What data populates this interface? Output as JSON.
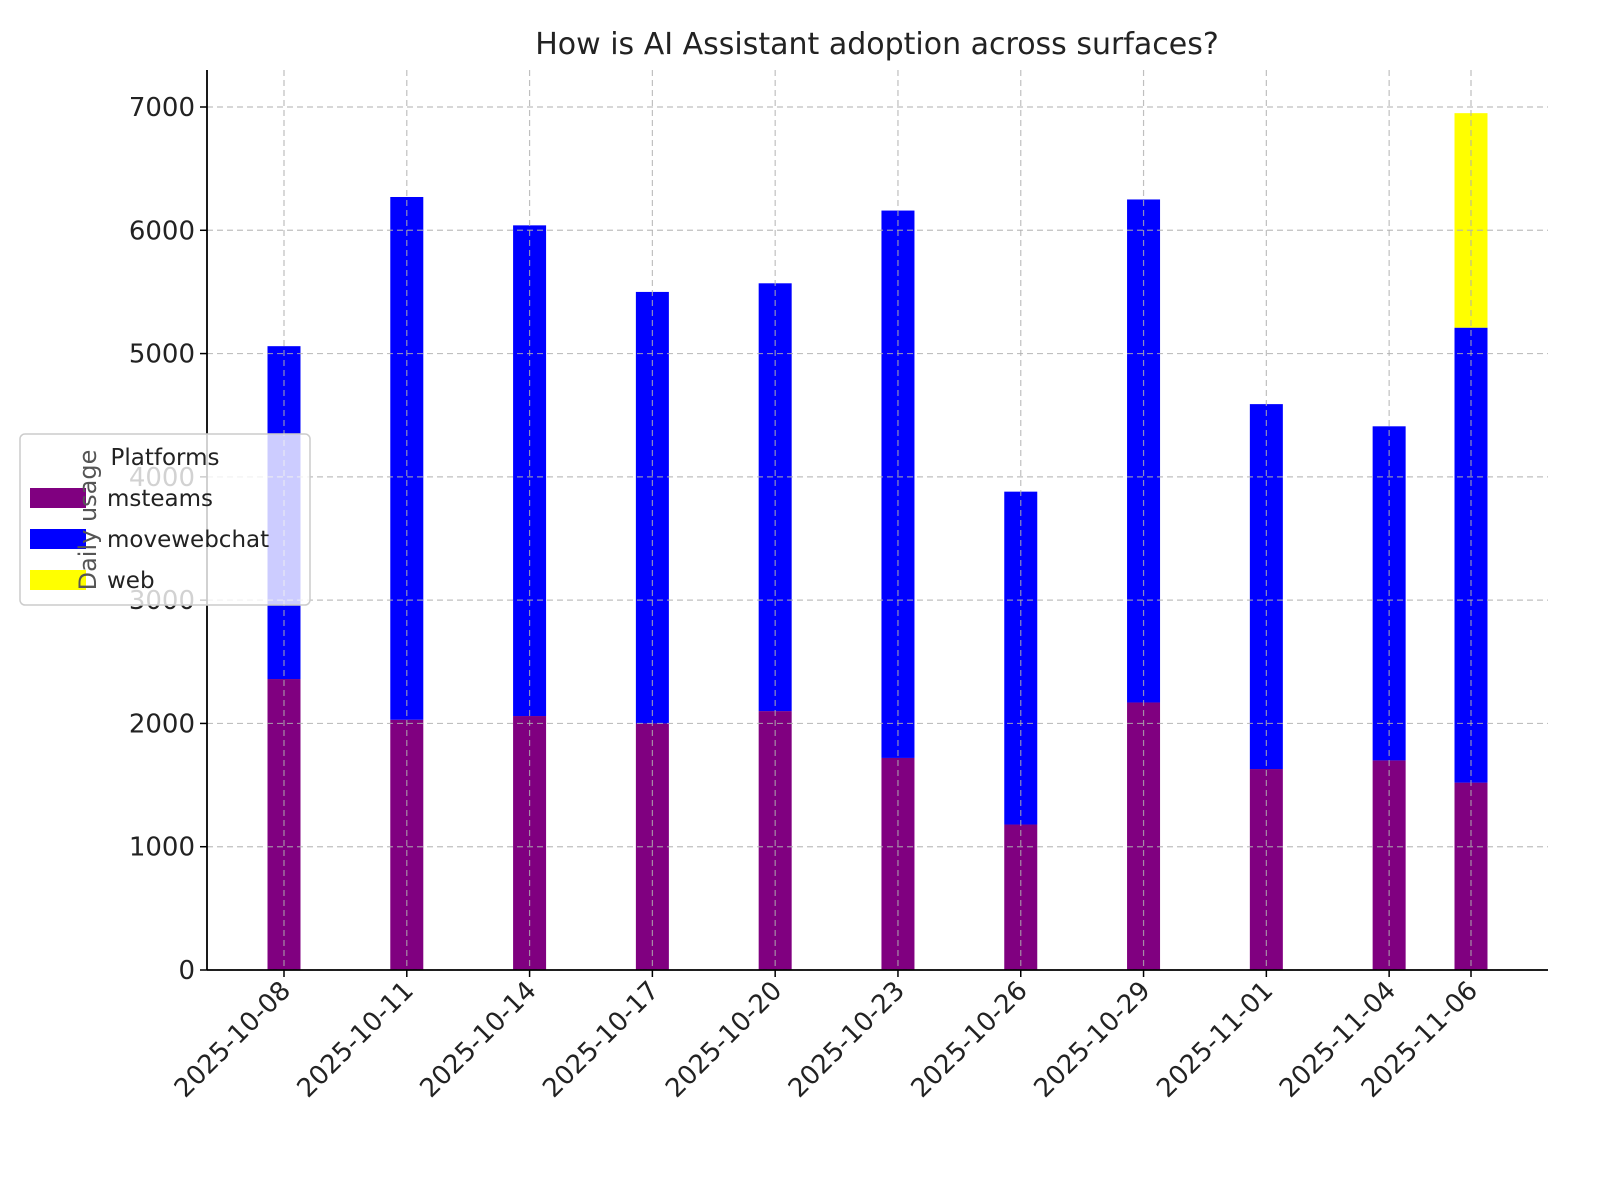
{
  "chart_data": {
    "type": "bar",
    "stacked": true,
    "title": "How is AI Assistant adoption across surfaces?",
    "xlabel": "",
    "ylabel": "Daily usage",
    "ylim": [
      0,
      7300
    ],
    "yticks": [
      0,
      1000,
      2000,
      3000,
      4000,
      5000,
      6000,
      7000
    ],
    "grid": true,
    "legend": {
      "title": "Platforms",
      "placement": "center-left"
    },
    "categories": [
      "2025-10-08",
      "2025-10-11",
      "2025-10-14",
      "2025-10-17",
      "2025-10-20",
      "2025-10-23",
      "2025-10-26",
      "2025-10-29",
      "2025-11-01",
      "2025-11-04",
      "2025-11-06"
    ],
    "day_offsets": [
      0,
      3,
      6,
      9,
      12,
      15,
      18,
      21,
      24,
      27,
      29
    ],
    "series": [
      {
        "name": "msteams",
        "color": "#800080",
        "values": [
          2360,
          2030,
          2060,
          2000,
          2100,
          1720,
          1180,
          2170,
          1630,
          1700,
          1520
        ]
      },
      {
        "name": "movewebchat",
        "color": "#0000ff",
        "values": [
          2700,
          4240,
          3980,
          3500,
          3470,
          4440,
          2700,
          4080,
          2960,
          2710,
          3690
        ]
      },
      {
        "name": "web",
        "color": "#ffff00",
        "values": [
          0,
          0,
          0,
          0,
          0,
          0,
          0,
          0,
          0,
          0,
          1740
        ]
      }
    ]
  }
}
